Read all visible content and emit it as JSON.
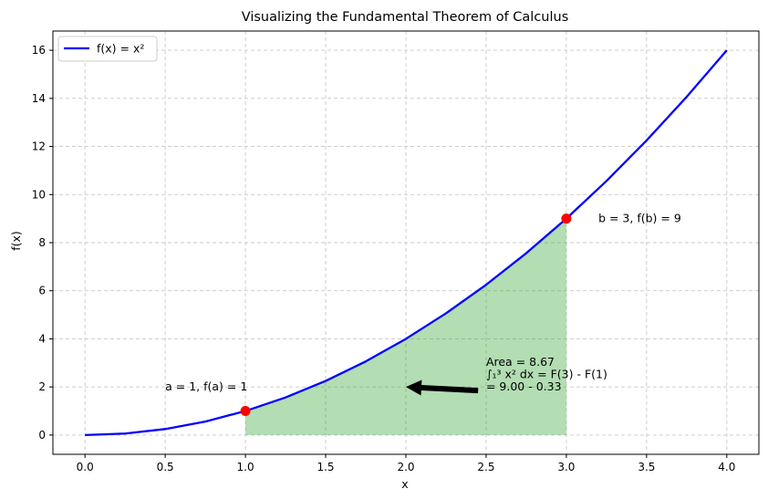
{
  "chart_data": {
    "type": "line",
    "title": "Visualizing the Fundamental Theorem of Calculus",
    "xlabel": "x",
    "ylabel": "f(x)",
    "xlim": [
      -0.2,
      4.2
    ],
    "ylim": [
      -0.8,
      16.8
    ],
    "xticks": [
      0.0,
      0.5,
      1.0,
      1.5,
      2.0,
      2.5,
      3.0,
      3.5,
      4.0
    ],
    "xtick_labels": [
      "0.0",
      "0.5",
      "1.0",
      "1.5",
      "2.0",
      "2.5",
      "3.0",
      "3.5",
      "4.0"
    ],
    "yticks": [
      0,
      2,
      4,
      6,
      8,
      10,
      12,
      14,
      16
    ],
    "ytick_labels": [
      "0",
      "2",
      "4",
      "6",
      "8",
      "10",
      "12",
      "14",
      "16"
    ],
    "grid": true,
    "legend_position": "top-left",
    "series": [
      {
        "name": "f(x) = x²",
        "color": "#0000ff",
        "x": [
          0.0,
          0.25,
          0.5,
          0.75,
          1.0,
          1.25,
          1.5,
          1.75,
          2.0,
          2.25,
          2.5,
          2.75,
          3.0,
          3.25,
          3.5,
          3.75,
          4.0
        ],
        "y": [
          0.0,
          0.0625,
          0.25,
          0.5625,
          1.0,
          1.5625,
          2.25,
          3.0625,
          4.0,
          5.0625,
          6.25,
          7.5625,
          9.0,
          10.5625,
          12.25,
          14.0625,
          16.0
        ]
      }
    ],
    "shaded_area": {
      "x_from": 1,
      "x_to": 3,
      "color": "#2ca02c"
    },
    "points": [
      {
        "x": 1,
        "y": 1,
        "color": "#ff0000",
        "label": "a = 1, f(a) = 1",
        "label_x": 0.5,
        "label_y": 2.0
      },
      {
        "x": 3,
        "y": 9,
        "color": "#ff0000",
        "label": "b = 3, f(b) = 9",
        "label_x": 3.2,
        "label_y": 9.0
      }
    ],
    "annotation": {
      "lines": [
        "Area = 8.67",
        "∫₁³ x² dx = F(3) - F(1)",
        "= 9.00 - 0.33"
      ],
      "text_x": 2.5,
      "text_y": 2.0,
      "arrow_from": [
        2.45,
        1.85
      ],
      "arrow_to": [
        2.0,
        2.0
      ]
    }
  }
}
